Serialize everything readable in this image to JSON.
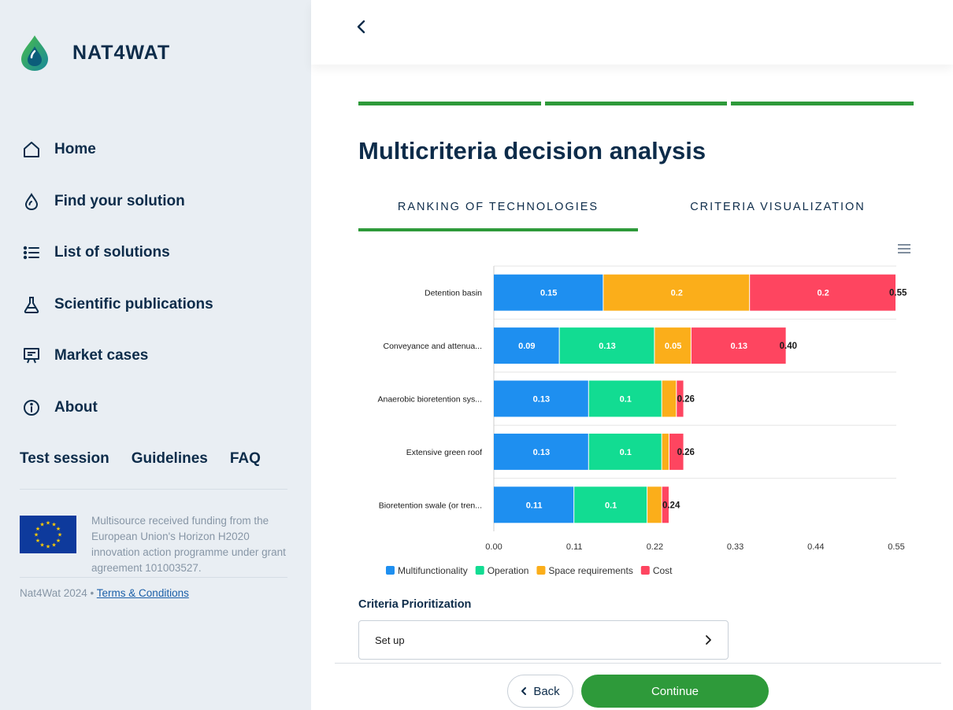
{
  "sidebar": {
    "brand": "NAT4WAT",
    "nav": [
      {
        "label": "Home",
        "icon": "home-icon"
      },
      {
        "label": "Find your solution",
        "icon": "drop-icon"
      },
      {
        "label": "List of solutions",
        "icon": "list-icon"
      },
      {
        "label": "Scientific publications",
        "icon": "flask-icon"
      },
      {
        "label": "Market cases",
        "icon": "presentation-icon"
      },
      {
        "label": "About",
        "icon": "info-icon"
      }
    ],
    "links": [
      "Test session",
      "Guidelines",
      "FAQ"
    ],
    "eu_text": "Multisource received funding from the European Union's Horizon H2020 innovation action programme under grant agreement 101003527.",
    "footer_prefix": "Nat4Wat 2024 • ",
    "footer_link": "Terms & Conditions"
  },
  "main": {
    "title": "Multicriteria decision analysis",
    "tabs": [
      {
        "label": "RANKING OF TECHNOLOGIES",
        "active": true
      },
      {
        "label": "CRITERIA VISUALIZATION",
        "active": false
      }
    ],
    "criteria_title": "Criteria Prioritization",
    "setup_label": "Set up",
    "back_label": "Back",
    "continue_label": "Continue"
  },
  "colors": {
    "accent_green": "#2e9a3a",
    "navy": "#0d2c4a",
    "multifunctionality": "#1e8ff0",
    "operation": "#12dc92",
    "space": "#fbae1a",
    "cost": "#fe4560"
  },
  "chart_data": {
    "type": "bar",
    "orientation": "horizontal",
    "stacked": true,
    "categories": [
      "Detention basin",
      "Conveyance and attenua...",
      "Anaerobic bioretention sys...",
      "Extensive green roof",
      "Bioretention swale (or tren..."
    ],
    "series": [
      {
        "name": "Multifunctionality",
        "values": [
          0.15,
          0.09,
          0.13,
          0.13,
          0.11
        ],
        "labels": [
          "0.15",
          "0.09",
          "0.13",
          "0.13",
          "0.11"
        ]
      },
      {
        "name": "Operation",
        "values": [
          0,
          0.13,
          0.1,
          0.1,
          0.1
        ],
        "labels": [
          "",
          "0.13",
          "0.1",
          "0.1",
          "0.1"
        ]
      },
      {
        "name": "Space requirements",
        "values": [
          0.2,
          0.05,
          0.02,
          0.01,
          0.02
        ],
        "labels": [
          "0.2",
          "0.05",
          "",
          "",
          ""
        ]
      },
      {
        "name": "Cost",
        "values": [
          0.2,
          0.13,
          0.01,
          0.02,
          0.01
        ],
        "labels": [
          "0.2",
          "0.13",
          "",
          "",
          ""
        ]
      }
    ],
    "totals": [
      "0.55",
      "0.40",
      "0.26",
      "0.26",
      "0.24"
    ],
    "xticks": [
      "0.00",
      "0.11",
      "0.22",
      "0.33",
      "0.44",
      "0.55"
    ],
    "xlim": [
      0,
      0.55
    ],
    "legend_position": "bottom-left"
  }
}
